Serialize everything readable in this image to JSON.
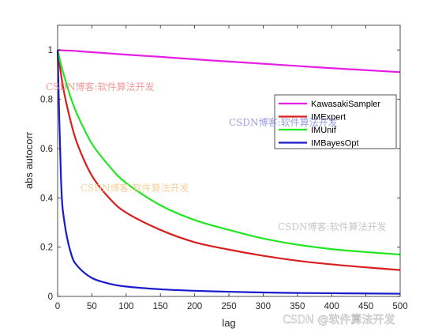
{
  "chart_data": {
    "type": "line",
    "xlabel": "lag",
    "ylabel": "abs autocorr",
    "xlim": [
      0,
      500
    ],
    "ylim": [
      0,
      1.1
    ],
    "xticks": [
      0,
      50,
      100,
      150,
      200,
      250,
      300,
      350,
      400,
      450,
      500
    ],
    "yticks": [
      0,
      0.2,
      0.4,
      0.6,
      0.8,
      1
    ],
    "ytick_labels": [
      "0",
      "0.2",
      "0.4",
      "0.6",
      "0.8",
      "1"
    ],
    "grid": false,
    "legend_position": "right",
    "x": [
      0,
      5,
      10,
      20,
      30,
      50,
      75,
      100,
      150,
      200,
      250,
      300,
      350,
      400,
      450,
      500
    ],
    "series": [
      {
        "name": "KawasakiSampler",
        "color": "#e61ee6",
        "values": [
          1.0,
          0.999,
          0.998,
          0.997,
          0.995,
          0.991,
          0.986,
          0.981,
          0.972,
          0.962,
          0.953,
          0.944,
          0.935,
          0.926,
          0.918,
          0.91
        ]
      },
      {
        "name": "IMExpert",
        "color": "#d81f1f",
        "values": [
          1.0,
          0.9,
          0.82,
          0.7,
          0.61,
          0.49,
          0.4,
          0.34,
          0.27,
          0.22,
          0.19,
          0.165,
          0.145,
          0.13,
          0.118,
          0.107
        ]
      },
      {
        "name": "IMUnif",
        "color": "#22e622",
        "values": [
          1.0,
          0.94,
          0.89,
          0.8,
          0.73,
          0.62,
          0.53,
          0.46,
          0.37,
          0.31,
          0.27,
          0.235,
          0.21,
          0.192,
          0.18,
          0.17
        ]
      },
      {
        "name": "IMBayesOpt",
        "color": "#1a1acc",
        "values": [
          1.0,
          0.47,
          0.3,
          0.17,
          0.12,
          0.075,
          0.052,
          0.04,
          0.029,
          0.023,
          0.019,
          0.016,
          0.014,
          0.013,
          0.012,
          0.011
        ]
      }
    ]
  },
  "watermarks": {
    "csdn_blog_1": "CSDN博客:软件算法开发",
    "csdn_blog_2": "CSDN博客:软件算法开发",
    "csdn_blog_3": "CSDN博客:软件算法开发",
    "csdn_blog_4": "CSDN博客:软件算法开发",
    "footer": "CSDN @软件算法开发"
  }
}
